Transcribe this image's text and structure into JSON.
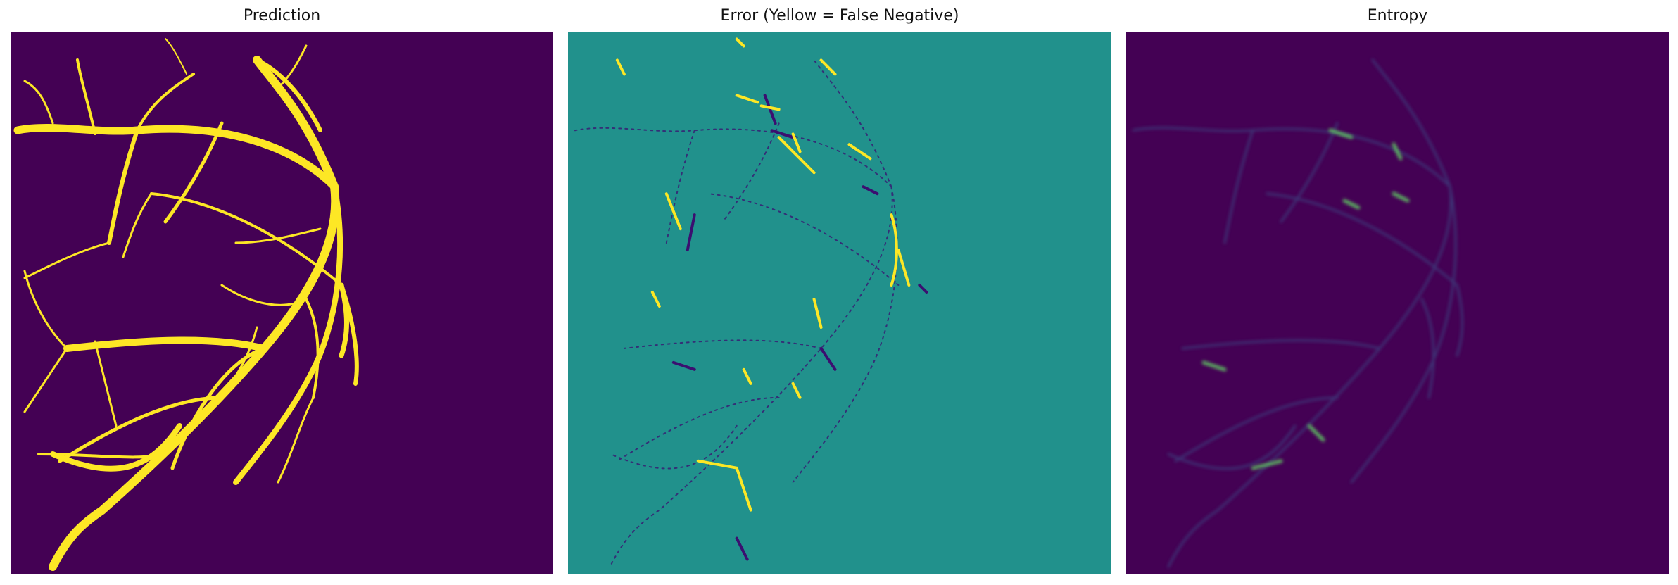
{
  "panels": [
    {
      "title": "Prediction",
      "colors": {
        "background": "#440154",
        "foreground": "#fde725"
      }
    },
    {
      "title": "Error (Yellow = False Negative)",
      "colors": {
        "background": "#21918c",
        "false_negative": "#fde725",
        "false_positive": "#3b0f70",
        "other": "#5ec962"
      }
    },
    {
      "title": "Entropy",
      "colors": {
        "background": "#440154",
        "low": "#3b528b",
        "high": "#5ec962"
      }
    }
  ]
}
